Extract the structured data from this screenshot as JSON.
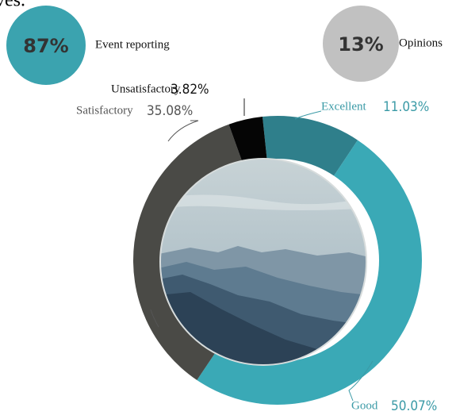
{
  "header": {
    "fragment": "ves."
  },
  "chart_data": {
    "type": "donut",
    "summary": [
      {
        "value": 87,
        "value_label": "87%",
        "name": "Event reporting",
        "color": "#3ba3af"
      },
      {
        "value": 13,
        "value_label": "13%",
        "name": "Opinions",
        "color": "#c1c1c1"
      }
    ],
    "categories": [
      "Excellent",
      "Good",
      "Satisfactory",
      "Unsatisfactory"
    ],
    "values": [
      11.03,
      50.07,
      35.08,
      3.82
    ],
    "value_labels": [
      "11.03%",
      "50.07%",
      "35.08%",
      "3.82%"
    ],
    "colors": [
      "#2f7f8b",
      "#3aa9b6",
      "#4a4a46",
      "#050505"
    ],
    "label_colors": [
      "#3a9aa6",
      "#3a9aa6",
      "#555555",
      "#111111"
    ]
  }
}
